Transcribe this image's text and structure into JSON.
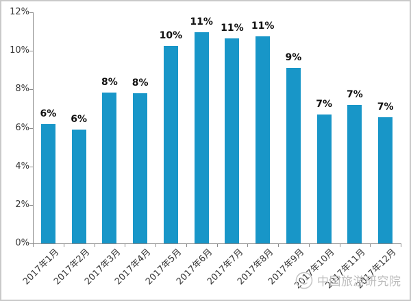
{
  "chart_data": {
    "type": "bar",
    "title": "",
    "xlabel": "",
    "ylabel": "",
    "categories": [
      "2017年1月",
      "2017年2月",
      "2017年3月",
      "2017年4月",
      "2017年5月",
      "2017年6月",
      "2017年7月",
      "2017年8月",
      "2017年9月",
      "2017年10月",
      "2017年11月",
      "2017年12月"
    ],
    "values": [
      6.2,
      5.9,
      7.85,
      7.8,
      10.25,
      10.95,
      10.65,
      10.75,
      9.1,
      6.7,
      7.2,
      6.55
    ],
    "data_labels": [
      "6%",
      "6%",
      "8%",
      "8%",
      "10%",
      "11%",
      "11%",
      "11%",
      "9%",
      "7%",
      "7%",
      "7%"
    ],
    "yticks": [
      "0%",
      "2%",
      "4%",
      "6%",
      "8%",
      "10%",
      "12%"
    ],
    "ytick_step": 2,
    "ylim": [
      0,
      12
    ],
    "grid": false,
    "legend_position": "none",
    "bar_color": "#1896C8",
    "axis_color": "#8a8a8a",
    "label_color": "#383838",
    "data_label_color": "#101010"
  },
  "watermark": {
    "text": "中国旅游研究院",
    "logo": "circle-face-logo",
    "color": "#bdbdbd"
  }
}
